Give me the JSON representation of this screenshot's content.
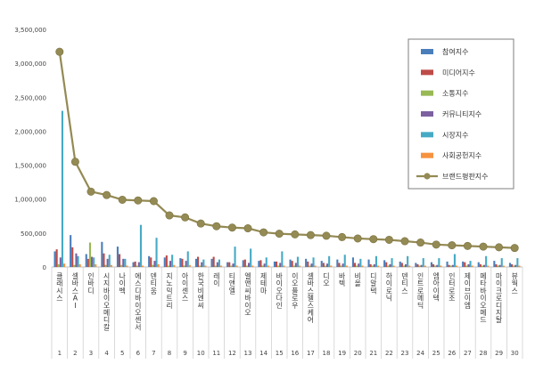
{
  "chart_data": {
    "type": "bar",
    "title": "",
    "xlabel": "",
    "ylabel": "",
    "ylim": [
      0,
      3500000
    ],
    "yticks": [
      0,
      500000,
      1000000,
      1500000,
      2000000,
      2500000,
      3000000,
      3500000
    ],
    "ytick_labels": [
      "0",
      "500,000",
      "1,000,000",
      "1,500,000",
      "2,000,000",
      "2,500,000",
      "3,000,000",
      "3,500,000"
    ],
    "grid": false,
    "legend_position": "top-right",
    "categories": [
      "클래시스",
      "셀바스AI",
      "인바디",
      "시지바이오메디칼",
      "나이벡",
      "에스디바이오센서",
      "덴티움",
      "지노믹트리",
      "아이센스",
      "한국비엔씨",
      "레이",
      "티앤엘",
      "엘앤씨바이오",
      "제테마",
      "바이오다인",
      "이오플로우",
      "셀바스헬스케어",
      "디오",
      "바텍",
      "비올",
      "디알텍",
      "하이로닉",
      "덴티스",
      "인트로메딕",
      "엠아이텍",
      "인터로조",
      "제이브이엠",
      "메타바이오메드",
      "마이크로디지탈",
      "뷰웍스"
    ],
    "rank_labels": [
      "1",
      "2",
      "3",
      "4",
      "5",
      "6",
      "7",
      "8",
      "9",
      "10",
      "11",
      "12",
      "13",
      "14",
      "15",
      "16",
      "17",
      "18",
      "19",
      "20",
      "21",
      "22",
      "23",
      "24",
      "25",
      "26",
      "27",
      "28",
      "29",
      "30"
    ],
    "series": [
      {
        "name": "참여지수",
        "color": "#4a7ebb",
        "values": [
          230000,
          470000,
          190000,
          370000,
          300000,
          70000,
          160000,
          140000,
          130000,
          120000,
          120000,
          70000,
          100000,
          90000,
          80000,
          110000,
          120000,
          90000,
          110000,
          140000,
          110000,
          100000,
          80000,
          60000,
          70000,
          80000,
          80000,
          70000,
          90000,
          60000
        ]
      },
      {
        "name": "미디어지수",
        "color": "#be4b48",
        "values": [
          260000,
          290000,
          120000,
          200000,
          190000,
          80000,
          140000,
          170000,
          120000,
          150000,
          150000,
          70000,
          110000,
          100000,
          80000,
          90000,
          80000,
          60000,
          60000,
          60000,
          40000,
          70000,
          60000,
          40000,
          40000,
          30000,
          70000,
          40000,
          40000,
          40000
        ]
      },
      {
        "name": "소통지수",
        "color": "#98b954",
        "values": [
          40000,
          30000,
          360000,
          30000,
          30000,
          20000,
          30000,
          20000,
          20000,
          20000,
          20000,
          20000,
          20000,
          20000,
          20000,
          20000,
          20000,
          20000,
          20000,
          20000,
          20000,
          20000,
          20000,
          20000,
          20000,
          20000,
          20000,
          20000,
          20000,
          20000
        ]
      },
      {
        "name": "커뮤니티지수",
        "color": "#7d60a0",
        "values": [
          140000,
          200000,
          150000,
          120000,
          120000,
          70000,
          90000,
          90000,
          90000,
          70000,
          70000,
          50000,
          60000,
          50000,
          60000,
          60000,
          50000,
          50000,
          50000,
          50000,
          40000,
          40000,
          40000,
          30000,
          30000,
          30000,
          40000,
          30000,
          30000,
          30000
        ]
      },
      {
        "name": "시장지수",
        "color": "#46aac5",
        "values": [
          2300000,
          160000,
          140000,
          180000,
          120000,
          620000,
          430000,
          180000,
          230000,
          110000,
          110000,
          300000,
          270000,
          140000,
          230000,
          150000,
          140000,
          160000,
          180000,
          120000,
          160000,
          130000,
          160000,
          130000,
          130000,
          190000,
          90000,
          160000,
          130000,
          130000
        ]
      },
      {
        "name": "사회공헌지수",
        "color": "#f69240",
        "values": [
          50000,
          40000,
          40000,
          30000,
          20000,
          20000,
          40000,
          30000,
          30000,
          20000,
          20000,
          20000,
          20000,
          20000,
          20000,
          20000,
          20000,
          20000,
          20000,
          20000,
          20000,
          20000,
          20000,
          20000,
          20000,
          20000,
          20000,
          20000,
          20000,
          20000
        ]
      }
    ],
    "line_series": {
      "name": "브랜드평판지수",
      "color": "#948a54",
      "values": [
        3170000,
        1550000,
        1110000,
        1060000,
        990000,
        980000,
        970000,
        760000,
        730000,
        640000,
        600000,
        580000,
        570000,
        510000,
        490000,
        480000,
        470000,
        460000,
        440000,
        420000,
        410000,
        400000,
        380000,
        360000,
        330000,
        320000,
        310000,
        300000,
        290000,
        280000
      ]
    }
  }
}
